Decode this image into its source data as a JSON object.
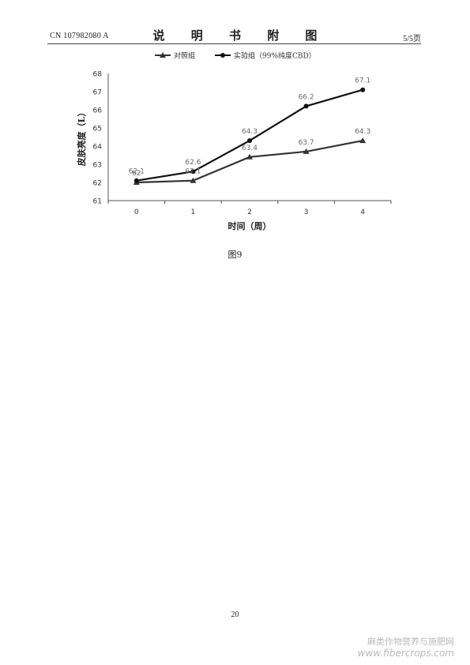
{
  "header": {
    "patent_number": "CN 107982080 A",
    "title": "说 明 书 附 图",
    "page_indicator": "5/5页"
  },
  "figure_caption": "图9",
  "page_number": "20",
  "watermark": {
    "line1": "麻类作物营养与施肥网",
    "line2": "www.fibercrops.com"
  },
  "chart_data": {
    "type": "line",
    "title": "",
    "xlabel": "时间（周）",
    "ylabel": "皮肤亮度（L）",
    "categories": [
      "0",
      "1",
      "2",
      "3",
      "4"
    ],
    "x": [
      0,
      1,
      2,
      3,
      4
    ],
    "ylim": [
      61,
      68
    ],
    "yticks": [
      61,
      62,
      63,
      64,
      65,
      66,
      67,
      68
    ],
    "grid": false,
    "legend_position": "top",
    "series": [
      {
        "name": "对照组",
        "marker": "triangle",
        "color": "#333333",
        "values": [
          62.0,
          62.1,
          63.4,
          63.7,
          64.3
        ],
        "data_labels": [
          "62",
          "62.1",
          "63.4",
          "63.7",
          "64.3"
        ]
      },
      {
        "name": "实验组（99%纯度CBD）",
        "marker": "circle",
        "color": "#111111",
        "values": [
          62.1,
          62.6,
          64.3,
          66.2,
          67.1
        ],
        "data_labels": [
          "62.1",
          "62.6",
          "64.3",
          "66.2",
          "67.1"
        ]
      }
    ]
  }
}
